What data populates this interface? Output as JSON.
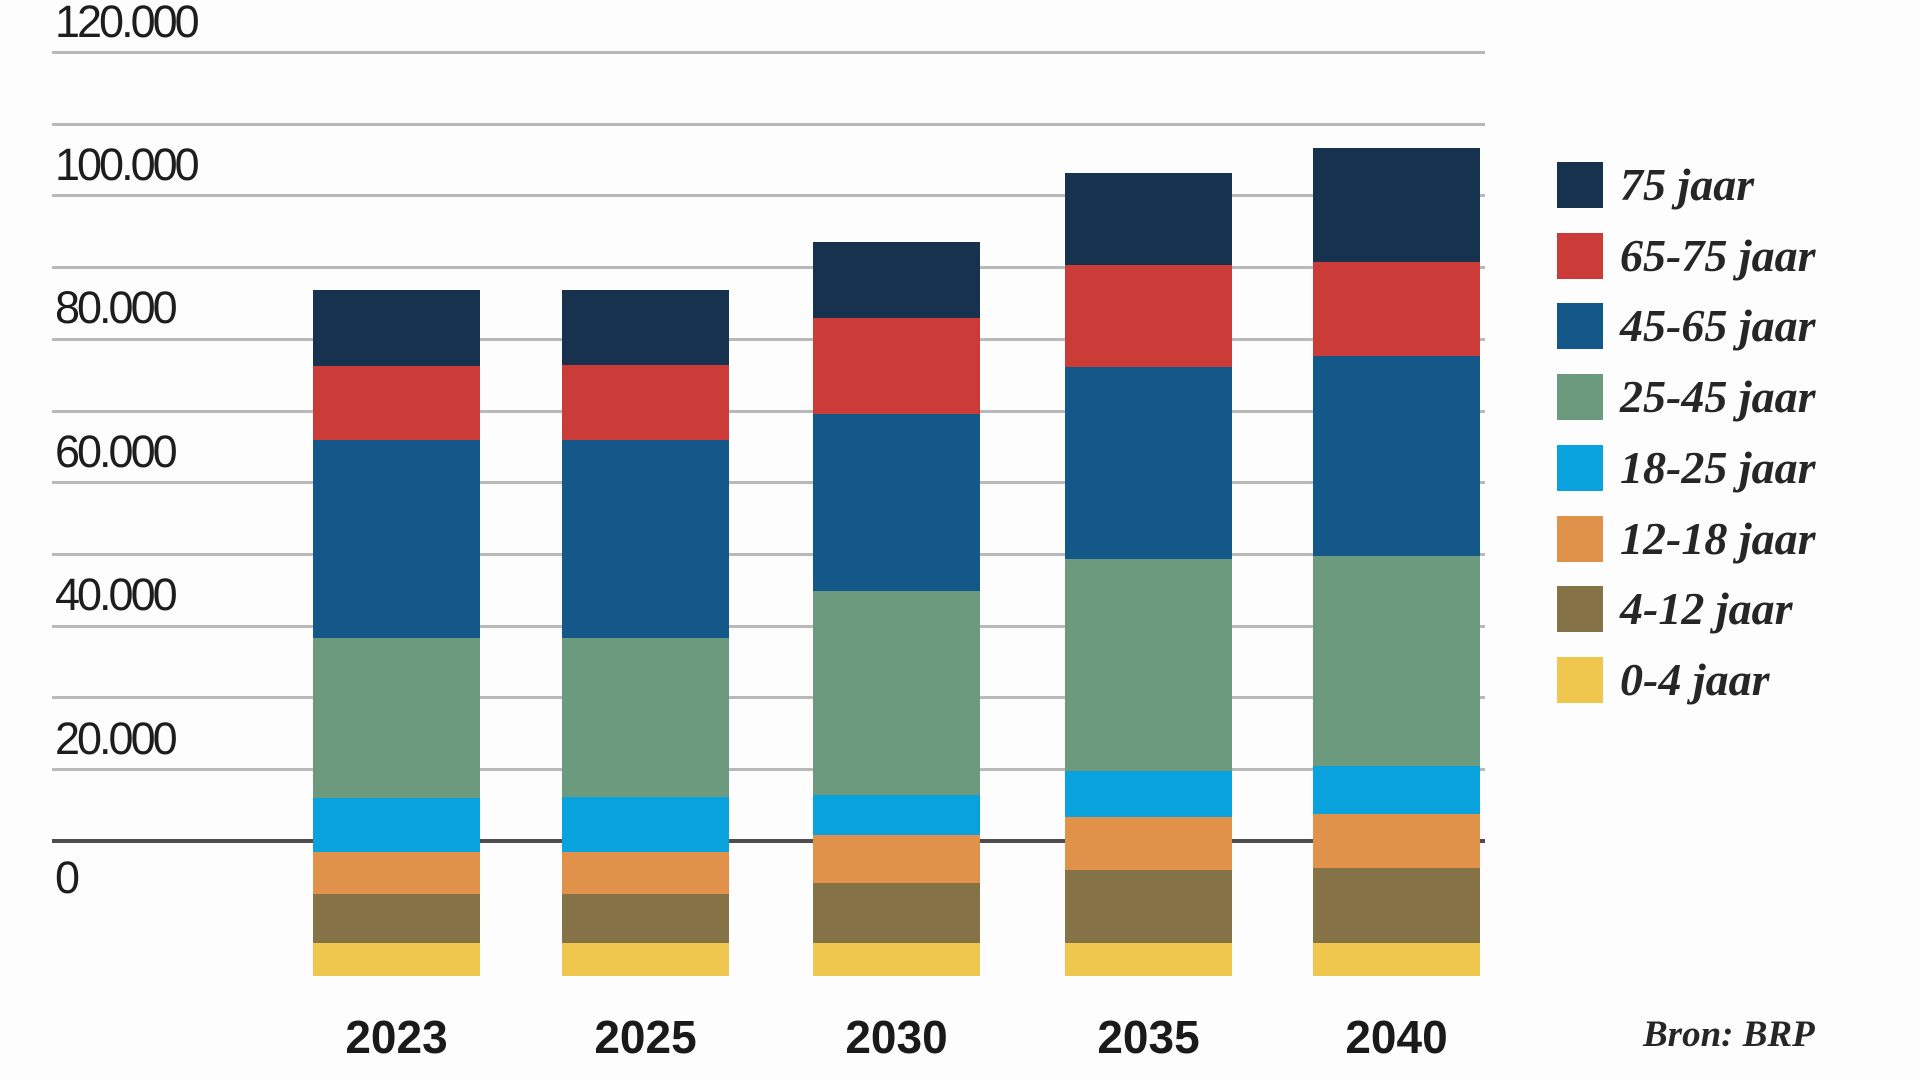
{
  "chart_data": {
    "type": "bar",
    "stacked": true,
    "categories": [
      "2023",
      "2025",
      "2030",
      "2035",
      "2040"
    ],
    "series": [
      {
        "name": "0-4 jaar",
        "color": "#f0c74e",
        "values": [
          4700,
          4700,
          4700,
          4700,
          4700
        ]
      },
      {
        "name": "4-12 jaar",
        "color": "#857347",
        "values": [
          6800,
          6800,
          8300,
          10100,
          10500
        ]
      },
      {
        "name": "12-18 jaar",
        "color": "#e0914a",
        "values": [
          5900,
          5900,
          6800,
          7500,
          7500
        ]
      },
      {
        "name": "18-25 jaar",
        "color": "#09a2dc",
        "values": [
          7500,
          7600,
          5500,
          6400,
          6700
        ]
      },
      {
        "name": "25-45 jaar",
        "color": "#6b9a7e",
        "values": [
          22300,
          22200,
          28400,
          29500,
          29200
        ]
      },
      {
        "name": "45-65 jaar",
        "color": "#14588a",
        "values": [
          27600,
          27600,
          24700,
          26800,
          27900
        ]
      },
      {
        "name": "65-75 jaar",
        "color": "#cb3b37",
        "values": [
          10300,
          10500,
          13400,
          14200,
          13100
        ]
      },
      {
        "name": "75 jaar",
        "color": "#16324e",
        "values": [
          10600,
          10400,
          10700,
          12900,
          15900
        ]
      }
    ],
    "totals": [
      95700,
      95700,
      102500,
      112100,
      115500
    ],
    "y_ticks": [
      "120.000",
      "100.000",
      "80.000",
      "60.000",
      "40.000",
      "20.000",
      "0"
    ],
    "ylim": [
      0,
      120000
    ],
    "grid": true,
    "legend_position": "right",
    "legend_order_top_to_bottom": [
      "75 jaar",
      "65-75 jaar",
      "45-65 jaar",
      "25-45 jaar",
      "18-25 jaar",
      "12-18 jaar",
      "4-12 jaar",
      "0-4 jaar"
    ],
    "source": "Bron: BRP"
  },
  "palette": {
    "background": "#fdfdfd",
    "gridline": "#b9b9b9",
    "axis_line": "#4d4d4d",
    "tick_text": "#1d1d1d",
    "label_text": "#1a1a1a",
    "legend_text": "#262626"
  }
}
